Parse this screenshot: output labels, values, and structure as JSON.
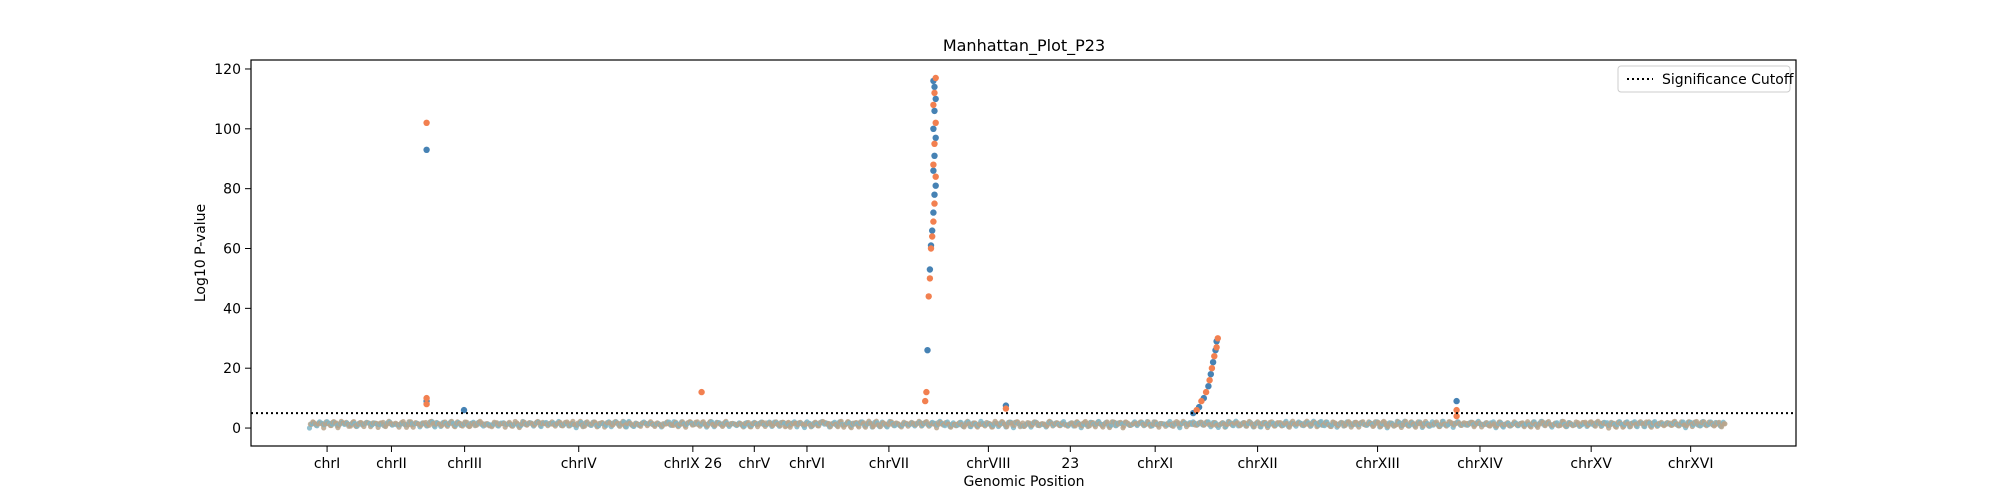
{
  "chart_data": {
    "type": "scatter",
    "title": "Manhattan_Plot_P23",
    "xlabel": "Genomic Position",
    "ylabel": "Log10 P-value",
    "ylim": [
      -6,
      123
    ],
    "yticks": [
      0,
      20,
      40,
      60,
      80,
      100,
      120
    ],
    "grid": false,
    "legend": {
      "position": "top-right",
      "entries": [
        "Significance Cutoff"
      ]
    },
    "significance_cutoff": 5,
    "colors": {
      "series_a": "#4682b4",
      "series_b": "#f28050",
      "baseline": "#b8a48c",
      "baseline_alt": "#7fb6c8",
      "cutoff": "#000000"
    },
    "categories": [
      "chrI",
      "chrII",
      "chrIII",
      "chrIV",
      "chrIX 26",
      "chrV",
      "chrVI",
      "chrVII",
      "chrVIII",
      "23",
      "chrXI",
      "chrXII",
      "chrXIII",
      "chrXIV",
      "chrXV",
      "chrXVI"
    ],
    "segments": [
      {
        "label": "chrI",
        "start": 0.0,
        "end": 0.3
      },
      {
        "label": "chrII",
        "start": 0.3,
        "end": 1.1
      },
      {
        "label": "chrIII",
        "start": 1.1,
        "end": 1.55
      },
      {
        "label": "chrIV",
        "start": 1.55,
        "end": 3.05
      },
      {
        "label": "chrIX 26",
        "start": 3.05,
        "end": 3.5
      },
      {
        "label": "chrV",
        "start": 3.5,
        "end": 4.1
      },
      {
        "label": "chrVI",
        "start": 4.1,
        "end": 4.4
      },
      {
        "label": "chrVII",
        "start": 4.4,
        "end": 5.5
      },
      {
        "label": "chrVIII",
        "start": 5.5,
        "end": 6.1
      },
      {
        "label": "23",
        "start": 6.1,
        "end": 6.9
      },
      {
        "label": "chrXI",
        "start": 6.9,
        "end": 7.55
      },
      {
        "label": "chrXII",
        "start": 7.55,
        "end": 8.65
      },
      {
        "label": "chrXIII",
        "start": 8.65,
        "end": 9.6
      },
      {
        "label": "chrXIV",
        "start": 9.6,
        "end": 10.4
      },
      {
        "label": "chrXV",
        "start": 10.4,
        "end": 11.5
      },
      {
        "label": "chrXVI",
        "start": 11.5,
        "end": 12.1
      }
    ],
    "xlim": [
      -0.5,
      12.7
    ],
    "series": [
      {
        "values": [
          {
            "x": 1.0,
            "y": 93
          },
          {
            "x": 1.0,
            "y": 9
          },
          {
            "x": 1.32,
            "y": 6
          },
          {
            "x": 5.28,
            "y": 26
          },
          {
            "x": 5.3,
            "y": 53
          },
          {
            "x": 5.31,
            "y": 61
          },
          {
            "x": 5.32,
            "y": 66
          },
          {
            "x": 5.33,
            "y": 72
          },
          {
            "x": 5.34,
            "y": 78
          },
          {
            "x": 5.35,
            "y": 81
          },
          {
            "x": 5.33,
            "y": 86
          },
          {
            "x": 5.34,
            "y": 91
          },
          {
            "x": 5.35,
            "y": 97
          },
          {
            "x": 5.33,
            "y": 100
          },
          {
            "x": 5.34,
            "y": 106
          },
          {
            "x": 5.35,
            "y": 110
          },
          {
            "x": 5.34,
            "y": 114
          },
          {
            "x": 5.33,
            "y": 116
          },
          {
            "x": 5.95,
            "y": 7.5
          },
          {
            "x": 7.55,
            "y": 5
          },
          {
            "x": 7.6,
            "y": 7
          },
          {
            "x": 7.64,
            "y": 10
          },
          {
            "x": 7.68,
            "y": 14
          },
          {
            "x": 7.7,
            "y": 18
          },
          {
            "x": 7.72,
            "y": 22
          },
          {
            "x": 7.74,
            "y": 26
          },
          {
            "x": 7.75,
            "y": 29
          },
          {
            "x": 9.8,
            "y": 9
          }
        ]
      },
      {
        "values": [
          {
            "x": 1.0,
            "y": 102
          },
          {
            "x": 1.0,
            "y": 10
          },
          {
            "x": 1.0,
            "y": 8
          },
          {
            "x": 3.35,
            "y": 12
          },
          {
            "x": 5.26,
            "y": 9
          },
          {
            "x": 5.27,
            "y": 12
          },
          {
            "x": 5.29,
            "y": 44
          },
          {
            "x": 5.3,
            "y": 50
          },
          {
            "x": 5.31,
            "y": 60
          },
          {
            "x": 5.32,
            "y": 64
          },
          {
            "x": 5.33,
            "y": 69
          },
          {
            "x": 5.34,
            "y": 75
          },
          {
            "x": 5.35,
            "y": 84
          },
          {
            "x": 5.33,
            "y": 88
          },
          {
            "x": 5.34,
            "y": 95
          },
          {
            "x": 5.35,
            "y": 102
          },
          {
            "x": 5.33,
            "y": 108
          },
          {
            "x": 5.34,
            "y": 112
          },
          {
            "x": 5.35,
            "y": 117
          },
          {
            "x": 5.95,
            "y": 6.5
          },
          {
            "x": 7.58,
            "y": 6
          },
          {
            "x": 7.62,
            "y": 9
          },
          {
            "x": 7.66,
            "y": 12
          },
          {
            "x": 7.69,
            "y": 16
          },
          {
            "x": 7.71,
            "y": 20
          },
          {
            "x": 7.73,
            "y": 24
          },
          {
            "x": 7.75,
            "y": 27
          },
          {
            "x": 7.76,
            "y": 30
          },
          {
            "x": 9.8,
            "y": 6
          },
          {
            "x": 9.8,
            "y": 4
          }
        ]
      }
    ]
  }
}
